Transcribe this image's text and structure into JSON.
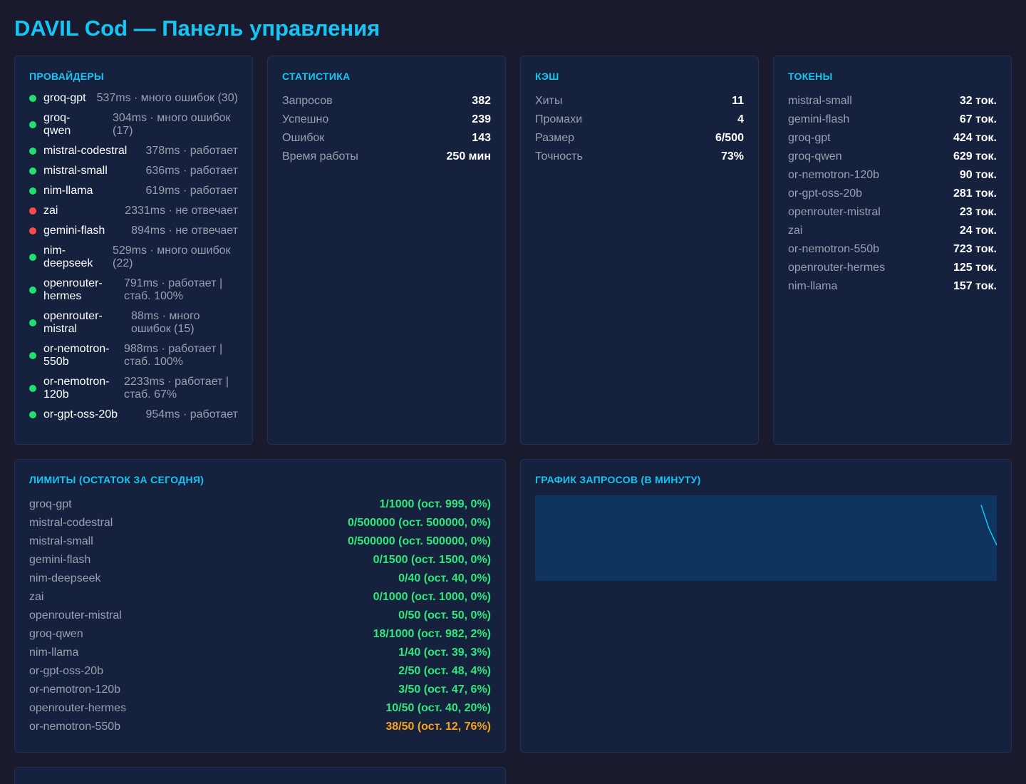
{
  "title": "DAVIL Cod — Панель управления",
  "providers": {
    "title": "ПРОВАЙДЕРЫ",
    "items": [
      {
        "name": "groq-gpt",
        "status": "537ms · много ошибок (30)",
        "state": "ok"
      },
      {
        "name": "groq-qwen",
        "status": "304ms · много ошибок (17)",
        "state": "ok"
      },
      {
        "name": "mistral-codestral",
        "status": "378ms · работает",
        "state": "ok"
      },
      {
        "name": "mistral-small",
        "status": "636ms · работает",
        "state": "ok"
      },
      {
        "name": "nim-llama",
        "status": "619ms · работает",
        "state": "ok"
      },
      {
        "name": "zai",
        "status": "2331ms · не отвечает",
        "state": "down"
      },
      {
        "name": "gemini-flash",
        "status": "894ms · не отвечает",
        "state": "down"
      },
      {
        "name": "nim-deepseek",
        "status": "529ms · много ошибок (22)",
        "state": "ok"
      },
      {
        "name": "openrouter-hermes",
        "status": "791ms · работает | стаб. 100%",
        "state": "ok"
      },
      {
        "name": "openrouter-mistral",
        "status": "88ms · много ошибок (15)",
        "state": "ok"
      },
      {
        "name": "or-nemotron-550b",
        "status": "988ms · работает | стаб. 100%",
        "state": "ok"
      },
      {
        "name": "or-nemotron-120b",
        "status": "2233ms · работает | стаб. 67%",
        "state": "ok"
      },
      {
        "name": "or-gpt-oss-20b",
        "status": "954ms · работает",
        "state": "ok"
      }
    ]
  },
  "stats": {
    "title": "СТАТИСТИКА",
    "rows": [
      {
        "label": "Запросов",
        "value": "382"
      },
      {
        "label": "Успешно",
        "value": "239"
      },
      {
        "label": "Ошибок",
        "value": "143"
      },
      {
        "label": "Время работы",
        "value": "250 мин"
      }
    ]
  },
  "cache": {
    "title": "КЭШ",
    "rows": [
      {
        "label": "Хиты",
        "value": "11"
      },
      {
        "label": "Промахи",
        "value": "4"
      },
      {
        "label": "Размер",
        "value": "6/500"
      },
      {
        "label": "Точность",
        "value": "73%"
      }
    ]
  },
  "tokens": {
    "title": "ТОКЕНЫ",
    "rows": [
      {
        "label": "mistral-small",
        "value": "32 ток."
      },
      {
        "label": "gemini-flash",
        "value": "67 ток."
      },
      {
        "label": "groq-gpt",
        "value": "424 ток."
      },
      {
        "label": "groq-qwen",
        "value": "629 ток."
      },
      {
        "label": "or-nemotron-120b",
        "value": "90 ток."
      },
      {
        "label": "or-gpt-oss-20b",
        "value": "281 ток."
      },
      {
        "label": "openrouter-mistral",
        "value": "23 ток."
      },
      {
        "label": "zai",
        "value": "24 ток."
      },
      {
        "label": "or-nemotron-550b",
        "value": "723 ток."
      },
      {
        "label": "openrouter-hermes",
        "value": "125 ток."
      },
      {
        "label": "nim-llama",
        "value": "157 ток."
      }
    ]
  },
  "limits": {
    "title": "ЛИМИТЫ (ОСТАТОК ЗА СЕГОДНЯ)",
    "rows": [
      {
        "label": "groq-gpt",
        "value": "1/1000 (ост. 999, 0%)",
        "level": "green"
      },
      {
        "label": "mistral-codestral",
        "value": "0/500000 (ост. 500000, 0%)",
        "level": "green"
      },
      {
        "label": "mistral-small",
        "value": "0/500000 (ост. 500000, 0%)",
        "level": "green"
      },
      {
        "label": "gemini-flash",
        "value": "0/1500 (ост. 1500, 0%)",
        "level": "green"
      },
      {
        "label": "nim-deepseek",
        "value": "0/40 (ост. 40, 0%)",
        "level": "green"
      },
      {
        "label": "zai",
        "value": "0/1000 (ост. 1000, 0%)",
        "level": "green"
      },
      {
        "label": "openrouter-mistral",
        "value": "0/50 (ост. 50, 0%)",
        "level": "green"
      },
      {
        "label": "groq-qwen",
        "value": "18/1000 (ост. 982, 2%)",
        "level": "green"
      },
      {
        "label": "nim-llama",
        "value": "1/40 (ост. 39, 3%)",
        "level": "green"
      },
      {
        "label": "or-gpt-oss-20b",
        "value": "2/50 (ост. 48, 4%)",
        "level": "green"
      },
      {
        "label": "or-nemotron-120b",
        "value": "3/50 (ост. 47, 6%)",
        "level": "green"
      },
      {
        "label": "openrouter-hermes",
        "value": "10/50 (ост. 40, 20%)",
        "level": "green"
      },
      {
        "label": "or-nemotron-550b",
        "value": "38/50 (ост. 12, 76%)",
        "level": "orange"
      }
    ]
  },
  "chart": {
    "title": "ГРАФИК ЗАПРОСОВ (В МИНУТУ)",
    "colors": {
      "background": "#0f3460",
      "line": "#15c6f5"
    }
  },
  "chart_data": {
    "type": "line",
    "title": "ГРАФИК ЗАПРОСОВ (В МИНУТУ)",
    "series": [
      {
        "values": [
          12,
          5,
          0
        ]
      }
    ],
    "ylim": [
      0,
      14
    ],
    "grid": false
  },
  "colors": {
    "accent": "#15c6f5",
    "ok": "#20e070",
    "down": "#ff4a4a",
    "warn": "#f7a21b",
    "card": "#16213e",
    "bg": "#1a1a2e"
  }
}
